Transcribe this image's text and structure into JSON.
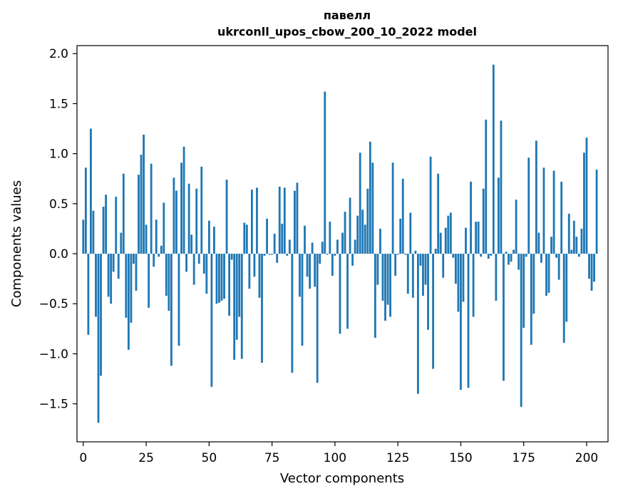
{
  "chart_data": {
    "type": "bar",
    "title": "павелл",
    "subtitle": "ukrconll_upos_cbow_200_10_2022 model",
    "xlabel": "Vector components",
    "ylabel": "Components values",
    "xlim": [
      -2.5,
      208.5
    ],
    "ylim": [
      -1.88,
      2.08
    ],
    "xticks": [
      0,
      25,
      50,
      75,
      100,
      125,
      150,
      175,
      200
    ],
    "xtick_labels": [
      "0",
      "25",
      "50",
      "75",
      "100",
      "125",
      "150",
      "175",
      "200"
    ],
    "yticks": [
      -1.5,
      -1.0,
      -0.5,
      0.0,
      0.5,
      1.0,
      1.5,
      2.0
    ],
    "ytick_labels": [
      "−1.5",
      "−1.0",
      "−0.5",
      "0.0",
      "0.5",
      "1.0",
      "1.5",
      "2.0"
    ],
    "grid": false,
    "bar_color": "#1f77b4",
    "values": [
      0.34,
      0.86,
      -0.81,
      1.25,
      0.43,
      -0.63,
      -1.69,
      -1.22,
      0.47,
      0.59,
      -0.43,
      -0.5,
      -0.18,
      0.57,
      -0.25,
      0.21,
      0.8,
      -0.64,
      -0.96,
      -0.69,
      -0.1,
      -0.37,
      0.79,
      0.99,
      1.19,
      0.29,
      -0.54,
      0.9,
      -0.13,
      0.34,
      -0.03,
      0.08,
      0.51,
      -0.42,
      -0.57,
      -1.12,
      0.76,
      0.63,
      -0.92,
      0.91,
      1.07,
      -0.18,
      0.7,
      0.19,
      -0.31,
      0.65,
      -0.1,
      0.87,
      -0.2,
      -0.4,
      0.33,
      -1.33,
      0.27,
      -0.5,
      -0.49,
      -0.47,
      -0.45,
      0.74,
      -0.62,
      -0.06,
      -1.06,
      -0.86,
      -0.63,
      -1.05,
      0.31,
      0.29,
      -0.35,
      0.64,
      -0.23,
      0.66,
      -0.44,
      -1.09,
      -0.02,
      0.35,
      -0.01,
      -0.01,
      0.2,
      -0.09,
      0.67,
      0.3,
      0.66,
      -0.02,
      0.14,
      -1.19,
      0.63,
      0.71,
      -0.43,
      -0.92,
      0.28,
      -0.23,
      -0.35,
      0.11,
      -0.33,
      -1.29,
      -0.1,
      0.12,
      1.62,
      -0.01,
      0.32,
      -0.22,
      -0.02,
      0.14,
      -0.8,
      0.21,
      0.42,
      -0.75,
      0.56,
      -0.12,
      0.14,
      0.38,
      1.01,
      0.44,
      0.29,
      0.65,
      1.12,
      0.91,
      -0.84,
      -0.31,
      0.25,
      -0.47,
      -0.67,
      -0.51,
      -0.63,
      0.91,
      -0.22,
      -0.01,
      0.35,
      0.75,
      -0.01,
      -0.4,
      0.41,
      -0.44,
      0.03,
      -1.4,
      -0.12,
      -0.42,
      -0.31,
      -0.76,
      0.97,
      -1.15,
      0.05,
      0.8,
      0.21,
      -0.24,
      0.26,
      0.38,
      0.41,
      -0.04,
      -0.3,
      -0.58,
      -1.36,
      -0.48,
      0.26,
      -1.34,
      0.72,
      -0.63,
      0.32,
      0.32,
      -0.03,
      0.65,
      1.34,
      -0.05,
      -0.02,
      1.89,
      -0.47,
      0.76,
      1.33,
      -1.27,
      0.02,
      -0.11,
      -0.08,
      0.04,
      0.54,
      -0.16,
      -1.53,
      -0.74,
      -0.03,
      0.96,
      -0.91,
      -0.6,
      1.13,
      0.21,
      -0.09,
      0.86,
      -0.42,
      -0.39,
      0.17,
      0.83,
      -0.04,
      -0.26,
      0.72,
      -0.89,
      -0.68,
      0.4,
      0.04,
      0.33,
      0.17,
      -0.03,
      0.25,
      1.01,
      1.16,
      -0.25,
      -0.37,
      -0.28,
      0.84
    ]
  }
}
